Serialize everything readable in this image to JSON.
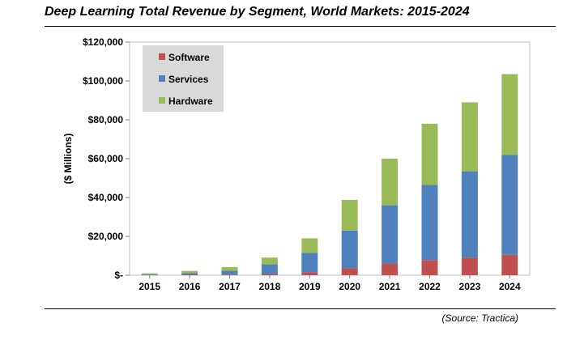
{
  "header": {
    "title": "Deep Learning Total Revenue by Segment, World Markets: 2015-2024",
    "source": "(Source: Tractica)"
  },
  "chart_data": {
    "type": "bar",
    "stacked": true,
    "title": "Deep Learning Total Revenue by Segment, World Markets: 2015-2024",
    "xlabel": "",
    "ylabel": "($ Millions)",
    "ylim": [
      0,
      120000
    ],
    "yticks": [
      0,
      20000,
      40000,
      60000,
      80000,
      100000,
      120000
    ],
    "ytick_labels": [
      "$-",
      "$20,000",
      "$40,000",
      "$60,000",
      "$80,000",
      "$100,000",
      "$120,000"
    ],
    "categories": [
      "2015",
      "2016",
      "2017",
      "2018",
      "2019",
      "2020",
      "2021",
      "2022",
      "2023",
      "2024"
    ],
    "series": [
      {
        "name": "Software",
        "color": "#C0504D",
        "values": [
          100,
          200,
          300,
          600,
          1500,
          3500,
          6000,
          7800,
          9000,
          10500
        ]
      },
      {
        "name": "Services",
        "color": "#4F81BD",
        "values": [
          400,
          900,
          2000,
          5000,
          10000,
          19500,
          30000,
          38700,
          44500,
          51500
        ]
      },
      {
        "name": "Hardware",
        "color": "#9BBB59",
        "values": [
          500,
          1100,
          1900,
          3500,
          7500,
          15800,
          24000,
          31500,
          35500,
          41500
        ]
      }
    ],
    "legend": {
      "position": "top-left"
    },
    "grid": false
  }
}
